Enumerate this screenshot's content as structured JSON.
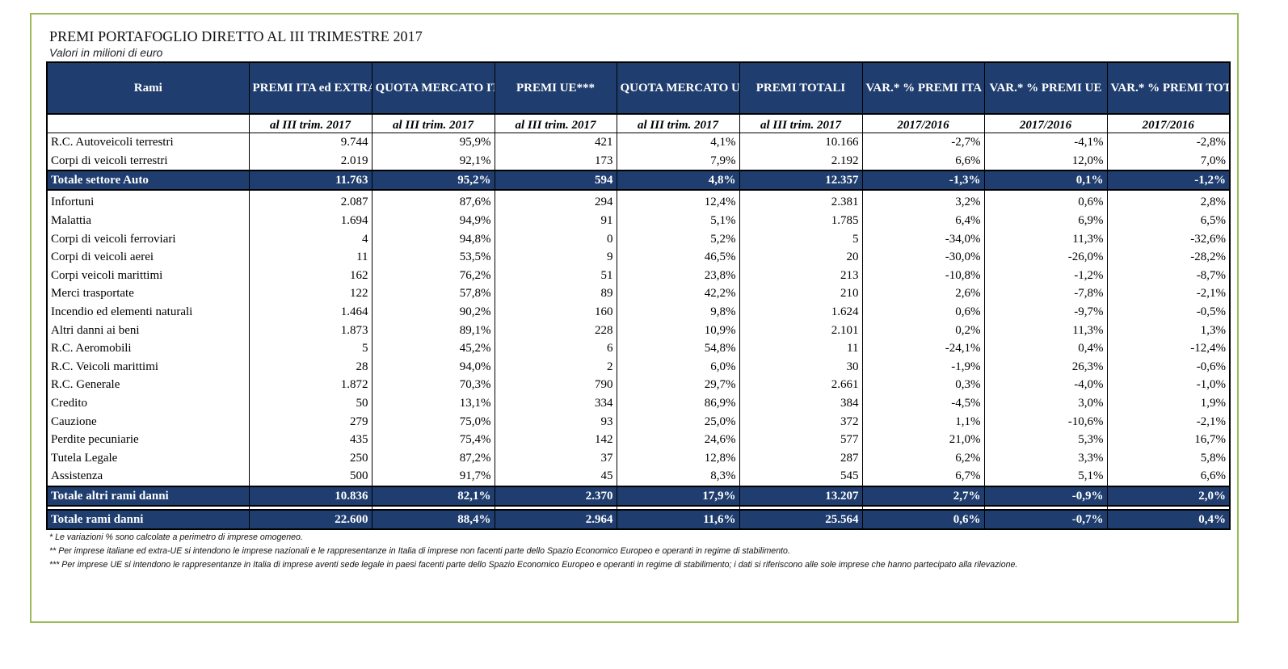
{
  "title": "PREMI PORTAFOGLIO DIRETTO AL III TRIMESTRE 2017",
  "subtitle": "Valori in milioni di euro",
  "headers": [
    "Rami",
    "PREMI ITA ed EXTRA UE**",
    "QUOTA MERCATO ITA ed EXTRA UE",
    "PREMI UE***",
    "QUOTA MERCATO UE",
    "PREMI TOTALI",
    "VAR.* % PREMI ITA ed EXTRA UE",
    "VAR.* % PREMI UE",
    "VAR.* % PREMI TOTALI"
  ],
  "subheaders": [
    "",
    "al III trim. 2017",
    "al III trim. 2017",
    "al III trim. 2017",
    "al III trim. 2017",
    "al III trim. 2017",
    "2017/2016",
    "2017/2016",
    "2017/2016"
  ],
  "auto_rows": [
    [
      "R.C. Autoveicoli terrestri",
      "9.744",
      "95,9%",
      "421",
      "4,1%",
      "10.166",
      "-2,7%",
      "-4,1%",
      "-2,8%"
    ],
    [
      "Corpi di veicoli terrestri",
      "2.019",
      "92,1%",
      "173",
      "7,9%",
      "2.192",
      "6,6%",
      "12,0%",
      "7,0%"
    ]
  ],
  "total_auto": [
    "Totale settore Auto",
    "11.763",
    "95,2%",
    "594",
    "4,8%",
    "12.357",
    "-1,3%",
    "0,1%",
    "-1,2%"
  ],
  "other_rows": [
    [
      "Infortuni",
      "2.087",
      "87,6%",
      "294",
      "12,4%",
      "2.381",
      "3,2%",
      "0,6%",
      "2,8%"
    ],
    [
      "Malattia",
      "1.694",
      "94,9%",
      "91",
      "5,1%",
      "1.785",
      "6,4%",
      "6,9%",
      "6,5%"
    ],
    [
      "Corpi di veicoli ferroviari",
      "4",
      "94,8%",
      "0",
      "5,2%",
      "5",
      "-34,0%",
      "11,3%",
      "-32,6%"
    ],
    [
      "Corpi di veicoli aerei",
      "11",
      "53,5%",
      "9",
      "46,5%",
      "20",
      "-30,0%",
      "-26,0%",
      "-28,2%"
    ],
    [
      "Corpi veicoli marittimi",
      "162",
      "76,2%",
      "51",
      "23,8%",
      "213",
      "-10,8%",
      "-1,2%",
      "-8,7%"
    ],
    [
      "Merci trasportate",
      "122",
      "57,8%",
      "89",
      "42,2%",
      "210",
      "2,6%",
      "-7,8%",
      "-2,1%"
    ],
    [
      "Incendio ed elementi naturali",
      "1.464",
      "90,2%",
      "160",
      "9,8%",
      "1.624",
      "0,6%",
      "-9,7%",
      "-0,5%"
    ],
    [
      "Altri danni ai beni",
      "1.873",
      "89,1%",
      "228",
      "10,9%",
      "2.101",
      "0,2%",
      "11,3%",
      "1,3%"
    ],
    [
      "R.C. Aeromobili",
      "5",
      "45,2%",
      "6",
      "54,8%",
      "11",
      "-24,1%",
      "0,4%",
      "-12,4%"
    ],
    [
      "R.C. Veicoli marittimi",
      "28",
      "94,0%",
      "2",
      "6,0%",
      "30",
      "-1,9%",
      "26,3%",
      "-0,6%"
    ],
    [
      "R.C. Generale",
      "1.872",
      "70,3%",
      "790",
      "29,7%",
      "2.661",
      "0,3%",
      "-4,0%",
      "-1,0%"
    ],
    [
      "Credito",
      "50",
      "13,1%",
      "334",
      "86,9%",
      "384",
      "-4,5%",
      "3,0%",
      "1,9%"
    ],
    [
      "Cauzione",
      "279",
      "75,0%",
      "93",
      "25,0%",
      "372",
      "1,1%",
      "-10,6%",
      "-2,1%"
    ],
    [
      "Perdite pecuniarie",
      "435",
      "75,4%",
      "142",
      "24,6%",
      "577",
      "21,0%",
      "5,3%",
      "16,7%"
    ],
    [
      "Tutela Legale",
      "250",
      "87,2%",
      "37",
      "12,8%",
      "287",
      "6,2%",
      "3,3%",
      "5,8%"
    ],
    [
      "Assistenza",
      "500",
      "91,7%",
      "45",
      "8,3%",
      "545",
      "6,7%",
      "5,1%",
      "6,6%"
    ]
  ],
  "total_other": [
    "Totale altri rami danni",
    "10.836",
    "82,1%",
    "2.370",
    "17,9%",
    "13.207",
    "2,7%",
    "-0,9%",
    "2,0%"
  ],
  "total_all": [
    "Totale rami danni",
    "22.600",
    "88,4%",
    "2.964",
    "11,6%",
    "25.564",
    "0,6%",
    "-0,7%",
    "0,4%"
  ],
  "notes": [
    "* Le variazioni % sono calcolate a perimetro di imprese omogeneo.",
    "** Per imprese italiane ed extra-UE si intendono le imprese nazionali e le rappresentanze in Italia di imprese non facenti parte dello Spazio Economico Europeo e operanti in regime di stabilimento.",
    "*** Per imprese UE si intendono le rappresentanze in Italia di imprese aventi sede legale in paesi facenti parte dello Spazio Economico Europeo e operanti in regime di stabilimento; i dati si riferiscono alle sole imprese che hanno partecipato alla rilevazione."
  ]
}
